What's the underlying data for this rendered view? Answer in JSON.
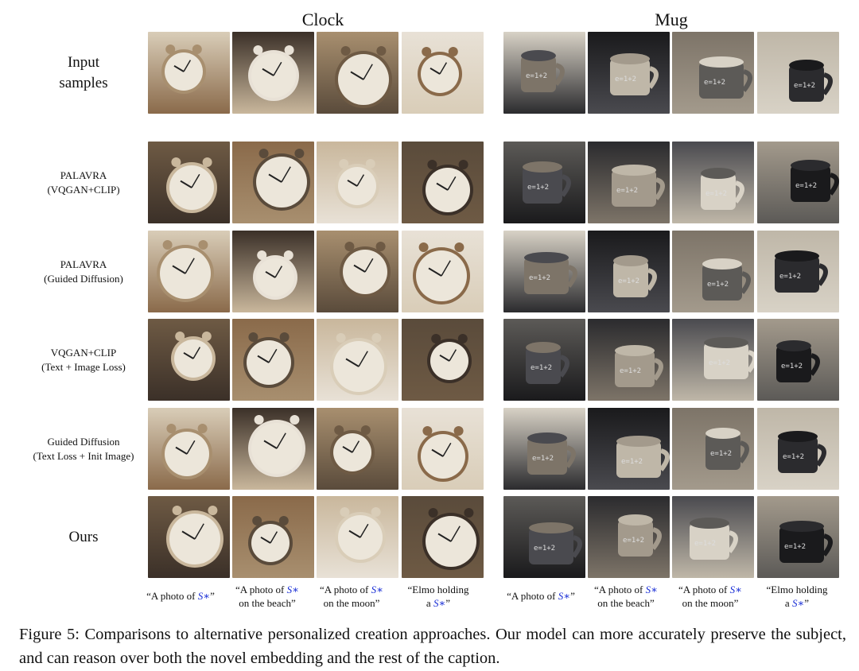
{
  "figure": {
    "columns": [
      "Clock",
      "Mug"
    ],
    "rows": [
      {
        "label": [
          "Input",
          "samples"
        ],
        "size": "big"
      },
      {
        "label": [
          "PALAVRA",
          "(VQGAN+CLIP)"
        ],
        "size": "small"
      },
      {
        "label": [
          "PALAVRA",
          "(Guided Diffusion)"
        ],
        "size": "small"
      },
      {
        "label": [
          "VQGAN+CLIP",
          "(Text + Image Loss)"
        ],
        "size": "small"
      },
      {
        "label": [
          "Guided Diffusion",
          "(Text Loss + Init Image)"
        ],
        "size": "small"
      },
      {
        "label": [
          "Ours"
        ],
        "size": "big"
      }
    ],
    "prompts": [
      {
        "pre": "“A photo of ",
        "line2": "",
        "post": "”"
      },
      {
        "pre": "“A photo of ",
        "line2": "on the beach”",
        "post": ""
      },
      {
        "pre": "“A photo of ",
        "line2": "on the moon”",
        "post": ""
      },
      {
        "pre": "“Elmo holding",
        "line2": "a ",
        "post": "”"
      }
    ],
    "token": "S∗",
    "caption": "Figure 5: Comparisons to alternative personalized creation approaches. Our model can more accurately preserve the subject, and can reason over both the novel embedding and the rest of the caption."
  },
  "palette": {
    "clock": [
      "#8a6a4a",
      "#c9b79c",
      "#5a4b3b",
      "#d9cdb8",
      "#3b3028",
      "#a88f6f",
      "#e8e1d6",
      "#6e5a44"
    ],
    "mug": [
      "#2b2b2e",
      "#4a4a4f",
      "#a39a8c",
      "#d8d2c6",
      "#1a1a1c",
      "#7d7468",
      "#bfb7a8",
      "#5c5a57"
    ]
  }
}
